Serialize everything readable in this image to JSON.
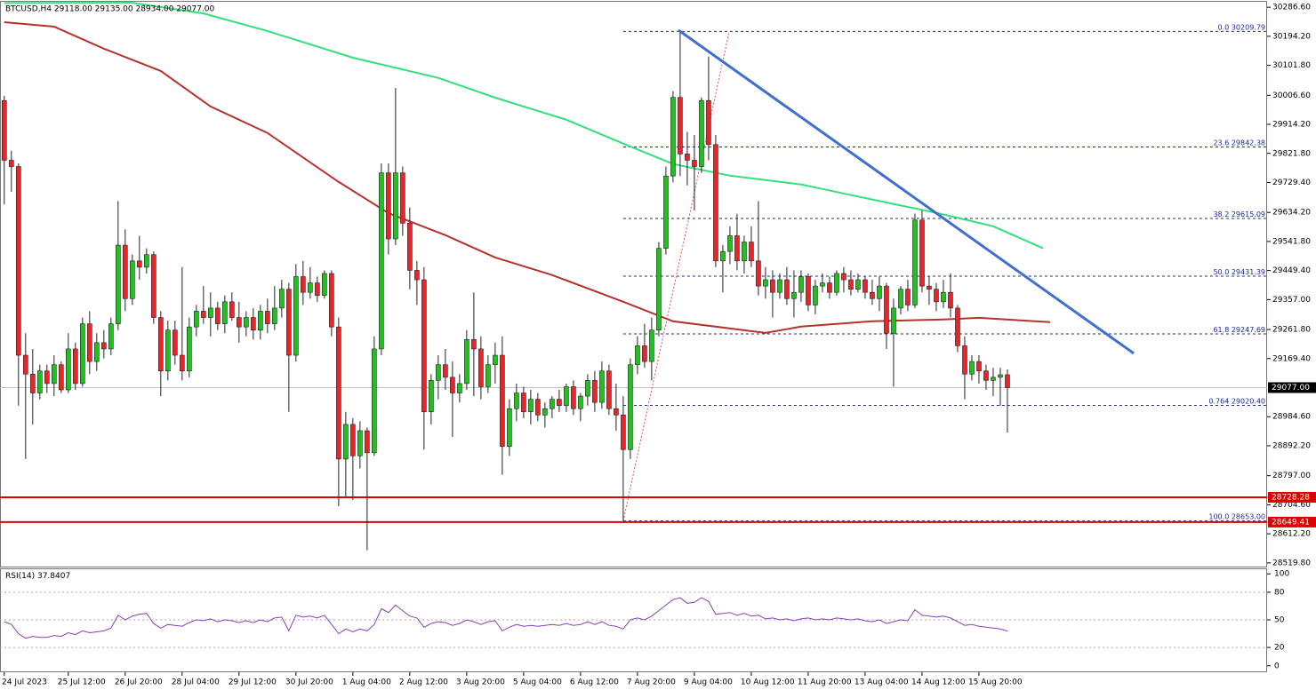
{
  "chart_data": {
    "type": "candlestick",
    "title": "BTCUSD,H4  29118.00 29135.00 28934.00 29077.00",
    "categories": [
      "24 Jul 2023",
      null,
      null,
      null,
      null,
      null,
      null,
      null,
      null,
      "25 Jul 12:00",
      null,
      null,
      null,
      null,
      null,
      null,
      null,
      "26 Jul 20:00",
      null,
      null,
      null,
      null,
      null,
      null,
      null,
      "28 Jul 04:00",
      null,
      null,
      null,
      null,
      null,
      null,
      null,
      "29 Jul 12:00",
      null,
      null,
      null,
      null,
      null,
      null,
      null,
      "30 Jul 20:00",
      null,
      null,
      null,
      null,
      null,
      null,
      null,
      "1 Aug 04:00",
      null,
      null,
      null,
      null,
      null,
      null,
      null,
      "2 Aug 12:00",
      null,
      null,
      null,
      null,
      null,
      null,
      null,
      "3 Aug 20:00",
      null,
      null,
      null,
      null,
      null,
      null,
      null,
      "5 Aug 04:00",
      null,
      null,
      null,
      null,
      null,
      null,
      null,
      "6 Aug 12:00",
      null,
      null,
      null,
      null,
      null,
      null,
      null,
      "7 Aug 20:00",
      null,
      null,
      null,
      null,
      null,
      null,
      null,
      "9 Aug 04:00",
      null,
      null,
      null,
      null,
      null,
      null,
      null,
      "10 Aug 12:00",
      null,
      null,
      null,
      null,
      null,
      null,
      null,
      "11 Aug 20:00",
      null,
      null,
      null,
      null,
      null,
      null,
      null,
      "13 Aug 04:00",
      null,
      null,
      null,
      null,
      null,
      null,
      null,
      "14 Aug 12:00",
      null,
      null,
      null,
      null,
      null,
      null,
      null,
      "15 Aug 20:00",
      null,
      null,
      null,
      null
    ],
    "candles": [
      [
        29990,
        30005,
        29660,
        29800
      ],
      [
        29800,
        29830,
        29700,
        29780
      ],
      [
        29780,
        29790,
        29020,
        29180
      ],
      [
        29180,
        29250,
        28850,
        29120
      ],
      [
        29120,
        29200,
        28960,
        29060
      ],
      [
        29060,
        29150,
        29040,
        29130
      ],
      [
        29130,
        29150,
        29060,
        29090
      ],
      [
        29090,
        29180,
        29050,
        29150
      ],
      [
        29150,
        29160,
        29060,
        29070
      ],
      [
        29070,
        29250,
        29060,
        29200
      ],
      [
        29200,
        29220,
        29070,
        29090
      ],
      [
        29090,
        29300,
        29080,
        29280
      ],
      [
        29280,
        29320,
        29120,
        29160
      ],
      [
        29160,
        29250,
        29130,
        29220
      ],
      [
        29220,
        29260,
        29170,
        29200
      ],
      [
        29200,
        29300,
        29180,
        29280
      ],
      [
        29280,
        29670,
        29260,
        29530
      ],
      [
        29530,
        29580,
        29320,
        29360
      ],
      [
        29360,
        29500,
        29340,
        29480
      ],
      [
        29480,
        29560,
        29420,
        29460
      ],
      [
        29460,
        29520,
        29440,
        29500
      ],
      [
        29500,
        29510,
        29280,
        29300
      ],
      [
        29300,
        29320,
        29050,
        29130
      ],
      [
        29130,
        29290,
        29100,
        29260
      ],
      [
        29260,
        29290,
        29150,
        29180
      ],
      [
        29180,
        29460,
        29100,
        29130
      ],
      [
        29130,
        29300,
        29110,
        29270
      ],
      [
        29270,
        29340,
        29240,
        29320
      ],
      [
        29320,
        29400,
        29280,
        29300
      ],
      [
        29300,
        29380,
        29240,
        29330
      ],
      [
        29330,
        29350,
        29260,
        29280
      ],
      [
        29280,
        29370,
        29250,
        29350
      ],
      [
        29350,
        29380,
        29290,
        29300
      ],
      [
        29300,
        29350,
        29220,
        29270
      ],
      [
        29270,
        29320,
        29240,
        29300
      ],
      [
        29300,
        29330,
        29230,
        29260
      ],
      [
        29260,
        29340,
        29230,
        29320
      ],
      [
        29320,
        29360,
        29250,
        29280
      ],
      [
        29280,
        29400,
        29260,
        29330
      ],
      [
        29330,
        29420,
        29300,
        29390
      ],
      [
        29390,
        29410,
        29000,
        29180
      ],
      [
        29180,
        29470,
        29160,
        29430
      ],
      [
        29430,
        29480,
        29340,
        29380
      ],
      [
        29380,
        29460,
        29360,
        29410
      ],
      [
        29410,
        29430,
        29350,
        29370
      ],
      [
        29370,
        29450,
        29360,
        29440
      ],
      [
        29440,
        29450,
        29240,
        29270
      ],
      [
        29270,
        29300,
        28700,
        28850
      ],
      [
        28850,
        29000,
        28730,
        28960
      ],
      [
        28960,
        28980,
        28720,
        28860
      ],
      [
        28860,
        28970,
        28820,
        28940
      ],
      [
        28940,
        28950,
        28560,
        28870
      ],
      [
        28870,
        29240,
        28860,
        29200
      ],
      [
        29200,
        29790,
        29180,
        29760
      ],
      [
        29760,
        29790,
        29500,
        29550
      ],
      [
        29550,
        30030,
        29530,
        29760
      ],
      [
        29760,
        29780,
        29560,
        29600
      ],
      [
        29600,
        29650,
        29390,
        29450
      ],
      [
        29450,
        29480,
        29340,
        29420
      ],
      [
        29420,
        29460,
        28880,
        29000
      ],
      [
        29000,
        29120,
        28960,
        29100
      ],
      [
        29100,
        29180,
        29040,
        29150
      ],
      [
        29150,
        29200,
        29070,
        29110
      ],
      [
        29110,
        29160,
        28920,
        29060
      ],
      [
        29060,
        29120,
        29030,
        29090
      ],
      [
        29090,
        29260,
        29070,
        29230
      ],
      [
        29230,
        29380,
        29050,
        29200
      ],
      [
        29200,
        29240,
        29040,
        29080
      ],
      [
        29080,
        29180,
        29060,
        29150
      ],
      [
        29150,
        29220,
        29090,
        29180
      ],
      [
        29180,
        29240,
        28800,
        28890
      ],
      [
        28890,
        29040,
        28860,
        29010
      ],
      [
        29010,
        29090,
        28970,
        29060
      ],
      [
        29060,
        29080,
        28980,
        29000
      ],
      [
        29000,
        29070,
        28960,
        29040
      ],
      [
        29040,
        29060,
        28970,
        28990
      ],
      [
        28990,
        29030,
        28950,
        29010
      ],
      [
        29010,
        29050,
        28980,
        29040
      ],
      [
        29040,
        29070,
        29000,
        29020
      ],
      [
        29020,
        29090,
        29000,
        29080
      ],
      [
        29080,
        29100,
        28990,
        29010
      ],
      [
        29010,
        29060,
        28970,
        29050
      ],
      [
        29050,
        29120,
        29020,
        29100
      ],
      [
        29100,
        29130,
        29000,
        29030
      ],
      [
        29030,
        29160,
        29010,
        29130
      ],
      [
        29130,
        29150,
        28990,
        29010
      ],
      [
        29010,
        29090,
        28940,
        28990
      ],
      [
        28990,
        29050,
        28653,
        28880
      ],
      [
        28880,
        29170,
        28850,
        29150
      ],
      [
        29150,
        29240,
        29120,
        29210
      ],
      [
        29210,
        29280,
        29140,
        29160
      ],
      [
        29160,
        29300,
        29100,
        29260
      ],
      [
        29260,
        29540,
        29240,
        29520
      ],
      [
        29520,
        29780,
        29500,
        29750
      ],
      [
        29750,
        30020,
        29730,
        30000
      ],
      [
        30000,
        30210,
        29750,
        29820
      ],
      [
        29820,
        29890,
        29720,
        29800
      ],
      [
        29800,
        29880,
        29640,
        29780
      ],
      [
        29780,
        30000,
        29760,
        29990
      ],
      [
        29990,
        30130,
        29800,
        29850
      ],
      [
        29850,
        29880,
        29460,
        29480
      ],
      [
        29480,
        29530,
        29380,
        29510
      ],
      [
        29510,
        29590,
        29470,
        29560
      ],
      [
        29560,
        29630,
        29450,
        29480
      ],
      [
        29480,
        29560,
        29440,
        29540
      ],
      [
        29540,
        29590,
        29460,
        29480
      ],
      [
        29480,
        29670,
        29370,
        29400
      ],
      [
        29400,
        29460,
        29360,
        29420
      ],
      [
        29420,
        29450,
        29300,
        29380
      ],
      [
        29380,
        29440,
        29360,
        29420
      ],
      [
        29420,
        29460,
        29340,
        29360
      ],
      [
        29360,
        29450,
        29300,
        29380
      ],
      [
        29380,
        29450,
        29350,
        29430
      ],
      [
        29430,
        29440,
        29320,
        29340
      ],
      [
        29340,
        29420,
        29310,
        29400
      ],
      [
        29400,
        29440,
        29380,
        29410
      ],
      [
        29410,
        29430,
        29360,
        29380
      ],
      [
        29380,
        29450,
        29370,
        29440
      ],
      [
        29440,
        29460,
        29380,
        29420
      ],
      [
        29420,
        29450,
        29370,
        29390
      ],
      [
        29390,
        29440,
        29380,
        29420
      ],
      [
        29420,
        29430,
        29360,
        29380
      ],
      [
        29380,
        29420,
        29340,
        29360
      ],
      [
        29360,
        29430,
        29320,
        29400
      ],
      [
        29400,
        29410,
        29200,
        29250
      ],
      [
        29250,
        29360,
        29080,
        29330
      ],
      [
        29330,
        29400,
        29310,
        29390
      ],
      [
        29390,
        29420,
        29320,
        29340
      ],
      [
        29340,
        29630,
        29330,
        29610
      ],
      [
        29610,
        29640,
        29380,
        29400
      ],
      [
        29400,
        29430,
        29340,
        29390
      ],
      [
        29390,
        29410,
        29320,
        29350
      ],
      [
        29350,
        29420,
        29330,
        29380
      ],
      [
        29380,
        29440,
        29300,
        29330
      ],
      [
        29330,
        29340,
        29190,
        29210
      ],
      [
        29210,
        29240,
        29040,
        29120
      ],
      [
        29120,
        29180,
        29100,
        29160
      ],
      [
        29160,
        29180,
        29090,
        29130
      ],
      [
        29130,
        29150,
        29070,
        29100
      ],
      [
        29100,
        29140,
        29050,
        29110
      ],
      [
        29110,
        29140,
        29020,
        29118
      ],
      [
        29118,
        29135,
        28934,
        29077
      ]
    ],
    "bull_color": "#1fc01f",
    "bear_color": "#e8262a",
    "xlim": [
      -0.6,
      177.5
    ],
    "ylim": [
      28508,
      30304
    ],
    "yticks": [
      {
        "value": 30286.6,
        "label": "30286.60"
      },
      {
        "value": 30194.2,
        "label": "30194.20"
      },
      {
        "value": 30101.8,
        "label": "30101.80"
      },
      {
        "value": 30006.6,
        "label": "30006.60"
      },
      {
        "value": 29914.2,
        "label": "29914.20"
      },
      {
        "value": 29821.8,
        "label": "29821.80"
      },
      {
        "value": 29729.4,
        "label": "29729.40"
      },
      {
        "value": 29634.2,
        "label": "29634.20"
      },
      {
        "value": 29541.8,
        "label": "29541.80"
      },
      {
        "value": 29449.4,
        "label": "29449.40"
      },
      {
        "value": 29357,
        "label": "29357.00"
      },
      {
        "value": 29261.8,
        "label": "29261.80"
      },
      {
        "value": 29169.4,
        "label": "29169.40"
      },
      {
        "value": 28984.6,
        "label": "28984.60"
      },
      {
        "value": 28892.2,
        "label": "28892.20"
      },
      {
        "value": 28797,
        "label": "28797.00"
      },
      {
        "value": 28704.6,
        "label": "28704.60"
      },
      {
        "value": 28612.2,
        "label": "28612.20"
      },
      {
        "value": 28519.8,
        "label": "28519.80"
      }
    ],
    "current_price": {
      "value": 29077,
      "label": "29077.00"
    },
    "support_lines": {
      "color": "#e00000",
      "values": [
        28728.28,
        28649.41
      ]
    },
    "moving_averages": [
      {
        "color": "#33e07a",
        "x": [
          0,
          18,
          28,
          37,
          49,
          61,
          69,
          79,
          87,
          94,
          102,
          112,
          122,
          131,
          139,
          146
        ],
        "values": [
          30300,
          30301,
          30267,
          30211,
          30126,
          30062,
          29999,
          29929,
          29853,
          29788,
          29751,
          29723,
          29675,
          29633,
          29590,
          29520
        ]
      },
      {
        "color": "#b5322d",
        "x": [
          0,
          7,
          14,
          22,
          29,
          37,
          47,
          54,
          62,
          69,
          77,
          87,
          94,
          107,
          112,
          122,
          132,
          137,
          147
        ],
        "values": [
          30239,
          30225,
          30155,
          30084,
          29971,
          29887,
          29731,
          29632,
          29562,
          29491,
          29435,
          29350,
          29288,
          29251,
          29271,
          29288,
          29294,
          29299,
          29285
        ]
      }
    ],
    "trendline": {
      "color": "#3f6fd0",
      "x": [
        94.75,
        158.75
      ],
      "values": [
        30214,
        29186
      ]
    },
    "fibonacci": {
      "color": "#1c2a9a",
      "diagonal_color": "#e05050",
      "x": [
        87,
        101.9
      ],
      "levels": [
        {
          "level": "0.0",
          "price": 30209.79
        },
        {
          "level": "23.6",
          "price": 29842.38
        },
        {
          "level": "38.2",
          "price": 29615.09
        },
        {
          "level": "50.0",
          "price": 29431.39
        },
        {
          "level": "61.8",
          "price": 29247.69
        },
        {
          "level": "0.764",
          "price": {
            "value": 29020.4,
            "label": "29020.40"
          }
        },
        {
          "level": "100.0",
          "price": {
            "value": 28653,
            "label": "28653.00"
          }
        }
      ]
    },
    "rsi": {
      "title": "RSI(14)",
      "color": "#8a3fb8",
      "ylim": [
        -6,
        105
      ],
      "yticks": [
        0,
        20,
        50,
        80,
        100
      ],
      "values": [
        48,
        45,
        35,
        30,
        32,
        31,
        31,
        33,
        32,
        36,
        34,
        38,
        36,
        37,
        38,
        41,
        55,
        50,
        54,
        56,
        57,
        46,
        41,
        45,
        44,
        43,
        47,
        50,
        49,
        51,
        48,
        50,
        49,
        47,
        49,
        47,
        50,
        48,
        52,
        53,
        38,
        55,
        53,
        54,
        52,
        55,
        45,
        35,
        40,
        37,
        40,
        38,
        45,
        62,
        58,
        66,
        60,
        54,
        52,
        42,
        46,
        48,
        47,
        44,
        46,
        50,
        48,
        45,
        48,
        49,
        38,
        42,
        45,
        43,
        44,
        43,
        44,
        45,
        44,
        46,
        44,
        45,
        48,
        45,
        48,
        44,
        43,
        40,
        50,
        52,
        50,
        54,
        60,
        66,
        72,
        74,
        68,
        69,
        74,
        70,
        56,
        57,
        58,
        55,
        57,
        54,
        55,
        51,
        52,
        50,
        51,
        49,
        51,
        52,
        50,
        51,
        50,
        52,
        51,
        50,
        51,
        49,
        48,
        50,
        46,
        48,
        50,
        49,
        61,
        55,
        54,
        53,
        54,
        52,
        48,
        44,
        45,
        43,
        42,
        41,
        40,
        37.8407
      ]
    }
  }
}
